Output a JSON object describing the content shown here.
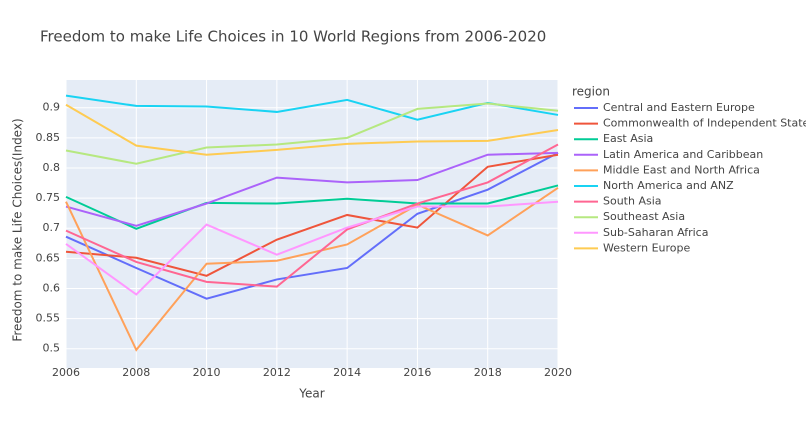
{
  "chart_data": {
    "type": "line",
    "title": "Freedom to make Life Choices in 10 World Regions from 2006-2020",
    "x_label": "Year",
    "y_label": "Freedom to make Life Choices(Index)",
    "legend_title": "region",
    "legend": "outside-right",
    "grid": true,
    "x": [
      2006,
      2008,
      2010,
      2012,
      2014,
      2016,
      2018,
      2020
    ],
    "xlim": [
      2006,
      2020
    ],
    "xticks": [
      2006,
      2008,
      2010,
      2012,
      2014,
      2016,
      2018,
      2020
    ],
    "ylim": [
      0.468,
      0.946
    ],
    "yticks": [
      0.5,
      0.55,
      0.6,
      0.65,
      0.7,
      0.75,
      0.8,
      0.85,
      0.9
    ],
    "series": [
      {
        "name": "Central and Eastern Europe",
        "color": "#636efa",
        "values": [
          0.686,
          0.634,
          0.583,
          0.615,
          0.634,
          0.724,
          0.764,
          0.825
        ]
      },
      {
        "name": "Commonwealth of Independent States",
        "color": "#ef553b",
        "values": [
          0.661,
          0.651,
          0.621,
          0.681,
          0.722,
          0.701,
          0.802,
          0.822
        ]
      },
      {
        "name": "East Asia",
        "color": "#00cc96",
        "values": [
          0.752,
          0.699,
          0.742,
          0.741,
          0.749,
          0.741,
          0.741,
          0.771
        ]
      },
      {
        "name": "Latin America and Caribbean",
        "color": "#ab63fa",
        "values": [
          0.736,
          0.704,
          0.741,
          0.784,
          0.776,
          0.78,
          0.822,
          0.825
        ]
      },
      {
        "name": "Middle East and North Africa",
        "color": "#ffa15a",
        "values": [
          0.744,
          0.498,
          0.641,
          0.646,
          0.673,
          0.739,
          0.688,
          0.767
        ]
      },
      {
        "name": "North America and ANZ",
        "color": "#19d3f3",
        "values": [
          0.92,
          0.903,
          0.902,
          0.893,
          0.913,
          0.88,
          0.908,
          0.888
        ]
      },
      {
        "name": "South Asia",
        "color": "#ff6692",
        "values": [
          0.696,
          0.644,
          0.611,
          0.603,
          0.698,
          0.741,
          0.776,
          0.839
        ]
      },
      {
        "name": "Southeast Asia",
        "color": "#b6e880",
        "values": [
          0.829,
          0.807,
          0.834,
          0.839,
          0.85,
          0.898,
          0.907,
          0.895
        ]
      },
      {
        "name": "Sub-Saharan Africa",
        "color": "#ff97ff",
        "values": [
          0.674,
          0.59,
          0.706,
          0.656,
          0.701,
          0.736,
          0.736,
          0.744
        ]
      },
      {
        "name": "Western Europe",
        "color": "#fecb52",
        "values": [
          0.905,
          0.837,
          0.822,
          0.83,
          0.84,
          0.844,
          0.845,
          0.863
        ]
      }
    ]
  }
}
